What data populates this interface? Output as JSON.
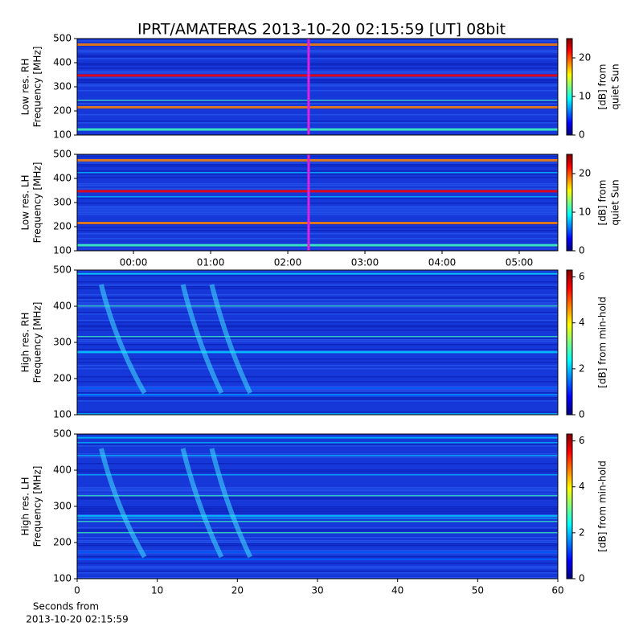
{
  "chart_data": [
    {
      "type": "heatmap",
      "title": "IPRT/AMATERAS 2013-10-20 02:15:59 [UT]   08bit",
      "ylabel": [
        "Low res. RH",
        "Frequency [MHz]"
      ],
      "ylim": [
        100,
        500
      ],
      "yticks": [
        100,
        200,
        300,
        400,
        500
      ],
      "xlim": [
        -0.73,
        5.5
      ],
      "marker_x": 2.27,
      "marker_color": "#e020e0",
      "colormap": "jet",
      "clabel": [
        "[dB] from",
        "quiet Sun"
      ],
      "clim": [
        0,
        25
      ],
      "cticks": [
        0,
        10,
        20
      ]
    },
    {
      "type": "heatmap",
      "ylabel": [
        "Low res. LH",
        "Frequency [MHz]"
      ],
      "ylim": [
        100,
        500
      ],
      "yticks": [
        100,
        200,
        300,
        400,
        500
      ],
      "xlim": [
        -0.73,
        5.5
      ],
      "xticks": [
        {
          "value": 0,
          "label": "00:00"
        },
        {
          "value": 1,
          "label": "01:00"
        },
        {
          "value": 2,
          "label": "02:00"
        },
        {
          "value": 3,
          "label": "03:00"
        },
        {
          "value": 4,
          "label": "04:00"
        },
        {
          "value": 5,
          "label": "05:00"
        }
      ],
      "marker_x": 2.27,
      "marker_color": "#e020e0",
      "colormap": "jet",
      "clabel": [
        "[dB] from",
        "quiet Sun"
      ],
      "clim": [
        0,
        25
      ],
      "cticks": [
        0,
        10,
        20
      ]
    },
    {
      "type": "heatmap",
      "ylabel": [
        "High res. RH",
        "Frequency [MHz]"
      ],
      "ylim": [
        100,
        500
      ],
      "yticks": [
        100,
        200,
        300,
        400,
        500
      ],
      "xlim": [
        0,
        60
      ],
      "colormap": "jet",
      "clabel": [
        "[dB] from min-hold"
      ],
      "clim": [
        0,
        6.3
      ],
      "cticks": [
        0,
        2,
        4,
        6
      ]
    },
    {
      "type": "heatmap",
      "ylabel": [
        "High res. LH",
        "Frequency [MHz]"
      ],
      "ylim": [
        100,
        500
      ],
      "yticks": [
        100,
        200,
        300,
        400,
        500
      ],
      "xlim": [
        0,
        60
      ],
      "xticks": [
        0,
        10,
        20,
        30,
        40,
        50,
        60
      ],
      "xlabel": [
        "Seconds from",
        "2013-10-20 02:15:59"
      ],
      "colormap": "jet",
      "clabel": [
        "[dB] from min-hold"
      ],
      "clim": [
        0,
        6.3
      ],
      "cticks": [
        0,
        2,
        4,
        6
      ]
    }
  ]
}
